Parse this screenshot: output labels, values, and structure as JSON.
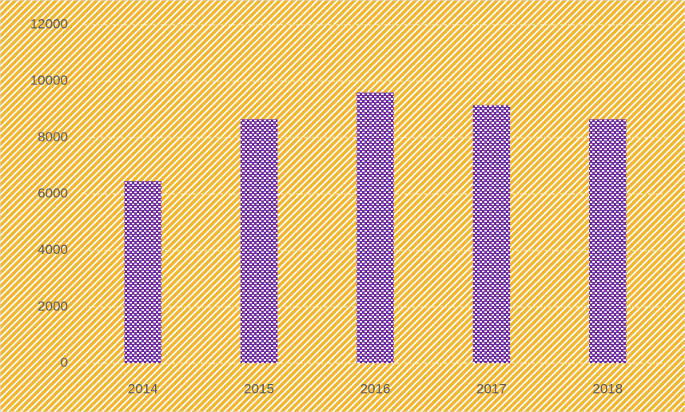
{
  "chart_data": {
    "type": "bar",
    "categories": [
      "2014",
      "2015",
      "2016",
      "2017",
      "2018"
    ],
    "values": [
      6450,
      8650,
      9600,
      9150,
      8650
    ],
    "color": "#7030a0",
    "background": "#f2b632",
    "ylim": [
      0,
      12000
    ],
    "yticks": [
      0,
      2000,
      4000,
      6000,
      8000,
      10000,
      12000
    ],
    "grid": true
  }
}
